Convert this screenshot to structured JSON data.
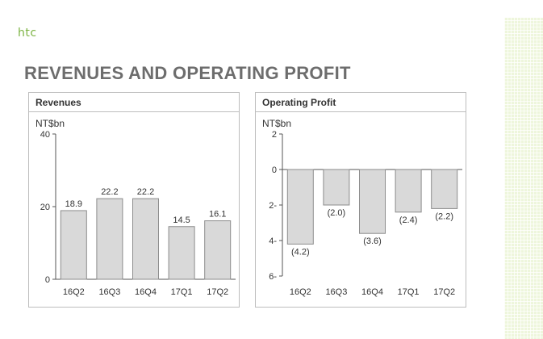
{
  "brand": {
    "logo_text": "htc"
  },
  "slide": {
    "title": "REVENUES AND OPERATING PROFIT"
  },
  "colors": {
    "accent": "#7cb342",
    "bar_fill": "#d9d9d9",
    "bar_stroke": "#8c8c8c",
    "title": "#6d6d6d"
  },
  "chart_data": [
    {
      "type": "bar",
      "title": "Revenues",
      "ylabel": "NT$bn",
      "categories": [
        "16Q2",
        "16Q3",
        "16Q4",
        "17Q1",
        "17Q2"
      ],
      "values": [
        18.9,
        22.2,
        22.2,
        14.5,
        16.1
      ],
      "value_labels": [
        "18.9",
        "22.2",
        "22.2",
        "14.5",
        "16.1"
      ],
      "ylim": [
        0,
        40
      ],
      "yticks": [
        0,
        20,
        40
      ],
      "ytick_labels": [
        "0",
        "20",
        "40"
      ],
      "grid": false
    },
    {
      "type": "bar",
      "title": "Operating Profit",
      "ylabel": "NT$bn",
      "categories": [
        "16Q2",
        "16Q3",
        "16Q4",
        "17Q1",
        "17Q2"
      ],
      "values": [
        -4.2,
        -2.0,
        -3.6,
        -2.4,
        -2.2
      ],
      "value_labels": [
        "(4.2)",
        "(2.0)",
        "(3.6)",
        "(2.4)",
        "(2.2)"
      ],
      "ylim": [
        -6,
        2
      ],
      "yticks": [
        2,
        0,
        -2,
        -4,
        -6
      ],
      "ytick_labels": [
        "2",
        "0",
        "2-",
        "4-",
        "6-"
      ],
      "grid": false
    }
  ]
}
